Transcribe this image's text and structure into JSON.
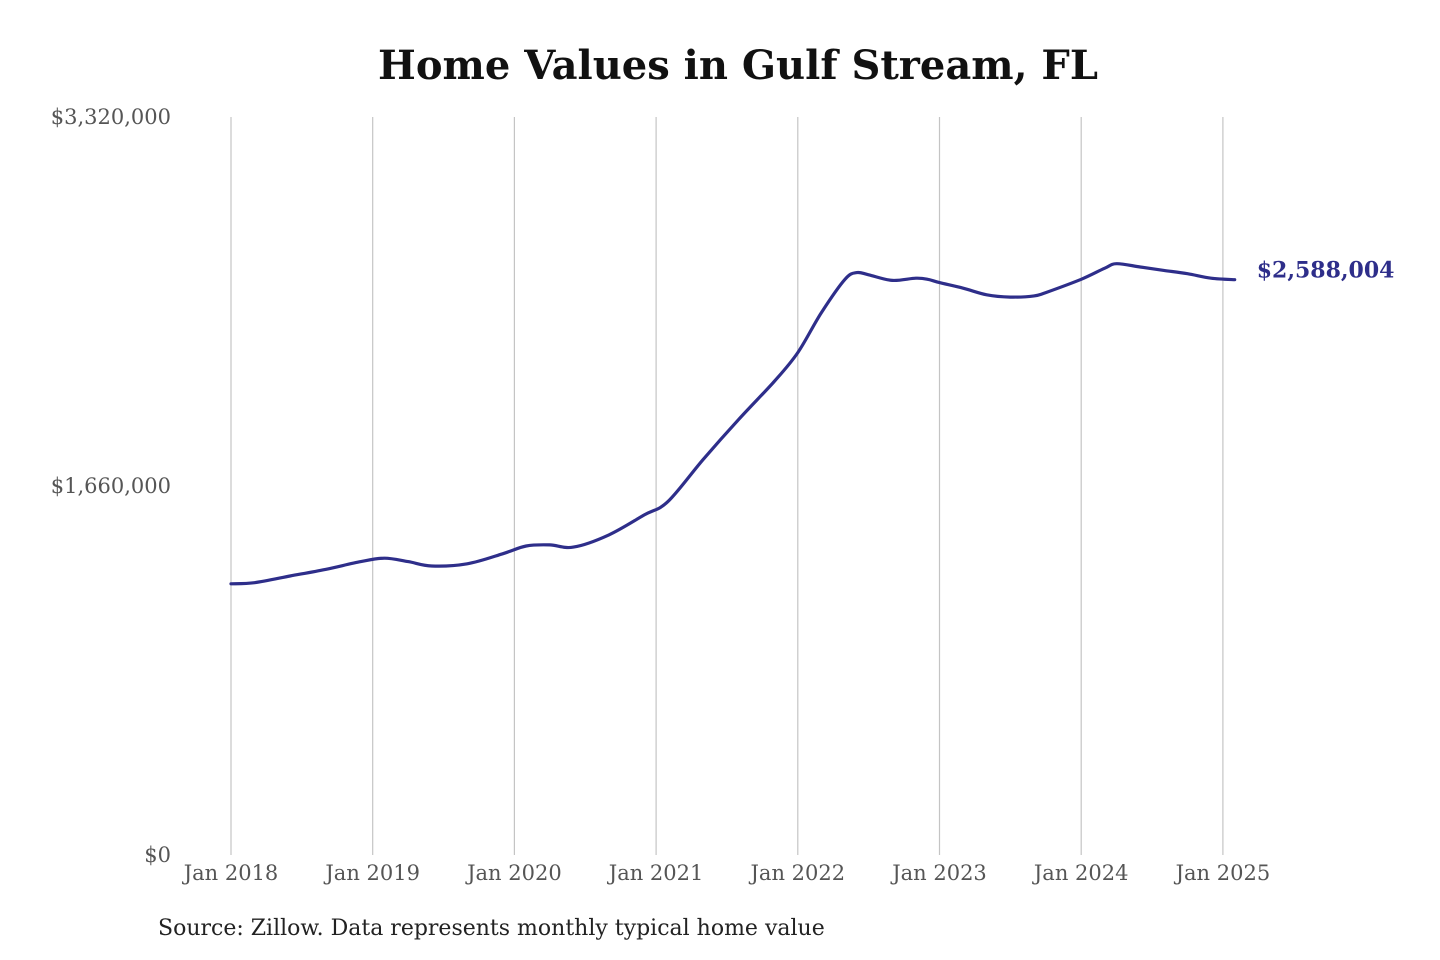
{
  "chart_data": {
    "type": "line",
    "title": "Home Values in Gulf Stream, FL",
    "source": "Source: Zillow. Data represents monthly typical home value",
    "series_color": "#2e2e8a",
    "grid": "vertical",
    "ylim": [
      0,
      3320000
    ],
    "y_ticks": [
      {
        "value": 0,
        "label": "$0"
      },
      {
        "value": 1660000,
        "label": "$1,660,000"
      },
      {
        "value": 3320000,
        "label": "$3,320,000"
      }
    ],
    "x_ticks": [
      {
        "value": 2018.0,
        "label": "Jan 2018"
      },
      {
        "value": 2019.0,
        "label": "Jan 2019"
      },
      {
        "value": 2020.0,
        "label": "Jan 2020"
      },
      {
        "value": 2021.0,
        "label": "Jan 2021"
      },
      {
        "value": 2022.0,
        "label": "Jan 2022"
      },
      {
        "value": 2023.0,
        "label": "Jan 2023"
      },
      {
        "value": 2024.0,
        "label": "Jan 2024"
      },
      {
        "value": 2025.0,
        "label": "Jan 2025"
      }
    ],
    "end_label": "$2,588,004",
    "series": [
      {
        "x": [
          "2018-01",
          "2018-03",
          "2018-06",
          "2018-09",
          "2018-12",
          "2019-02",
          "2019-04",
          "2019-06",
          "2019-09",
          "2019-12",
          "2020-02",
          "2020-04",
          "2020-06",
          "2020-09",
          "2020-12",
          "2021-02",
          "2021-05",
          "2021-08",
          "2021-11",
          "2022-01",
          "2022-03",
          "2022-05",
          "2022-06",
          "2022-07",
          "2022-09",
          "2022-11",
          "2022-12",
          "2023-01",
          "2023-03",
          "2023-05",
          "2023-07",
          "2023-09",
          "2023-10",
          "2024-01",
          "2024-03",
          "2024-04",
          "2024-06",
          "2024-08",
          "2024-10",
          "2024-12",
          "2025-02"
        ],
        "values": [
          1220000,
          1225000,
          1255000,
          1285000,
          1320000,
          1335000,
          1320000,
          1300000,
          1310000,
          1355000,
          1390000,
          1395000,
          1385000,
          1440000,
          1530000,
          1590000,
          1780000,
          1960000,
          2130000,
          2260000,
          2440000,
          2590000,
          2620000,
          2610000,
          2585000,
          2595000,
          2590000,
          2575000,
          2550000,
          2520000,
          2510000,
          2515000,
          2530000,
          2590000,
          2640000,
          2660000,
          2645000,
          2630000,
          2615000,
          2595000,
          2588004
        ]
      }
    ]
  }
}
